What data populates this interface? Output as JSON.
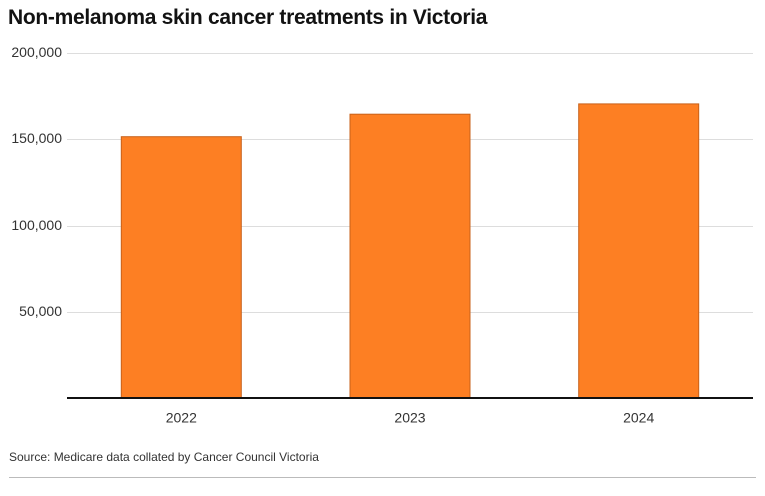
{
  "title": "Non-melanoma skin cancer treatments in Victoria",
  "source": "Source: Medicare data collated by Cancer Council Victoria",
  "colors": {
    "bar": "#fd7f23",
    "bar_stroke": "#c8611a",
    "grid": "#dddddd",
    "axis": "#111111"
  },
  "chart_data": {
    "type": "bar",
    "categories": [
      "2022",
      "2023",
      "2024"
    ],
    "values": [
      151500,
      164500,
      170500
    ],
    "ylim": [
      0,
      200000
    ],
    "yticks": [
      50000,
      100000,
      150000,
      200000
    ],
    "ytick_labels": [
      "50,000",
      "100,000",
      "150,000",
      "200,000"
    ],
    "title": "Non-melanoma skin cancer treatments in Victoria",
    "xlabel": "",
    "ylabel": "",
    "grid": true
  }
}
